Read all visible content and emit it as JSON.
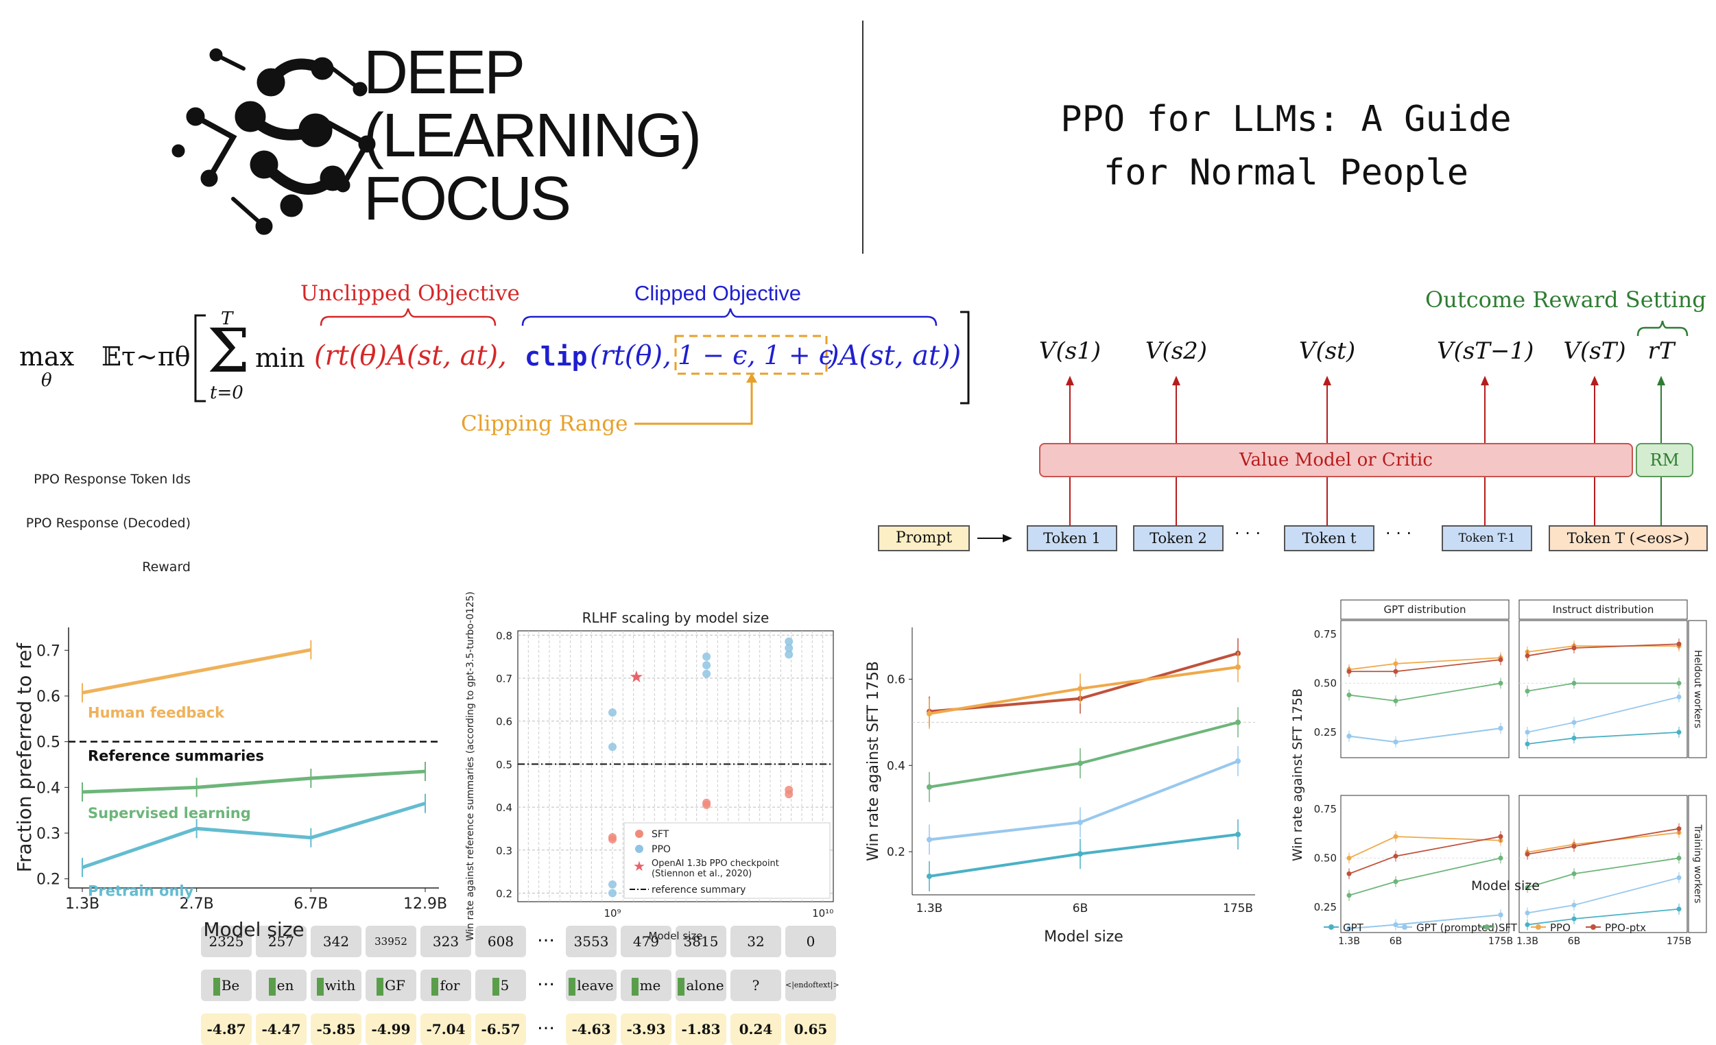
{
  "logo": {
    "line1": "DEEP",
    "line2": "(LEARNING)",
    "line3": "FOCUS"
  },
  "title": {
    "line1": "PPO for LLMs: A Guide",
    "line2": "for Normal People"
  },
  "equation": {
    "unclipped_label": "Unclipped Objective",
    "clipped_label": "Clipped Objective",
    "clipping_range_label": "Clipping Range",
    "max": "max",
    "theta": "θ",
    "expectation": "𝔼τ∼πθ",
    "sum_top": "T",
    "sum_bottom": "t=0",
    "min": "min",
    "unclipped_term": "(rt(θ)A(st, at),",
    "clip_fn": "clip",
    "clip_arg": "(rt(θ),",
    "clip_range": "1 − ϵ, 1 + ϵ",
    "clip_tail": ")A(st, at))",
    "colors": {
      "unclipped": "#d62728",
      "clipped": "#1f1fd0",
      "range": "#e8a02a",
      "outcome": "#2e7d32"
    }
  },
  "tokens": {
    "row_labels": [
      "PPO Response Token Ids",
      "PPO Response (Decoded)",
      "Reward"
    ],
    "ids": [
      "2325",
      "257",
      "342",
      "33952",
      "323",
      "608",
      "…",
      "3553",
      "479",
      "3815",
      "32",
      "0"
    ],
    "decoded": [
      "Be",
      "en",
      "with",
      "GF",
      "for",
      "5",
      "…",
      "leave",
      "me",
      "alone",
      "?",
      "<|endoftext|>"
    ],
    "rewards": [
      "-4.87",
      "-4.47",
      "-5.85",
      "-4.99",
      "-7.04",
      "-6.57",
      "…",
      "-4.63",
      "-3.93",
      "-1.83",
      "0.24",
      "0.65"
    ]
  },
  "value_diagram": {
    "outcome_label": "Outcome Reward Setting",
    "values": [
      "V(s1)",
      "V(s2)",
      "V(st)",
      "V(sT−1)",
      "V(sT)",
      "rT"
    ],
    "critic_label": "Value Model or Critic",
    "rm_label": "RM",
    "prompt_label": "Prompt",
    "token_labels": [
      "Token 1",
      "Token 2",
      "Token t",
      "Token T-1",
      "Token T (<eos>)"
    ],
    "ellipsis": "· · ·"
  },
  "chart_data": [
    {
      "type": "line",
      "categories": [
        "1.3B",
        "2.7B",
        "6.7B",
        "12.9B"
      ],
      "xlabel": "Model size",
      "ylabel": "Fraction preferred to ref",
      "ylim": [
        0.18,
        0.75
      ],
      "yticks": [
        "0.2",
        "0.3",
        "0.4",
        "0.5",
        "0.6",
        "0.7"
      ],
      "reference_line": {
        "y": 0.5,
        "label": "Reference summaries"
      },
      "series": [
        {
          "name": "Human feedback",
          "color": "#efb25a",
          "values": [
            0.607,
            null,
            0.701,
            null
          ]
        },
        {
          "name": "Supervised learning",
          "color": "#6db57a",
          "values": [
            0.39,
            0.4,
            0.42,
            0.435
          ]
        },
        {
          "name": "Pretrain only",
          "color": "#63bcd0",
          "values": [
            0.225,
            0.31,
            0.29,
            0.365
          ]
        }
      ]
    },
    {
      "type": "scatter",
      "title": "RLHF scaling by model size",
      "xlabel": "Model size",
      "ylabel": "Win rate against reference summaries (according to gpt-3.5-turbo-0125)",
      "xticks": [
        "10⁹",
        "10¹⁰"
      ],
      "yticks": [
        "0.2",
        "0.3",
        "0.4",
        "0.5",
        "0.6",
        "0.7",
        "0.8"
      ],
      "ylim": [
        0.18,
        0.81
      ],
      "reference_line": {
        "y": 0.5
      },
      "legend": [
        "SFT",
        "PPO",
        "OpenAI 1.3b PPO checkpoint (Stiennon et al., 2020)",
        "reference summary"
      ],
      "legend_lines": [
        "OpenAI 1.3b PPO checkpoint",
        "(Stiennon et al., 2020)"
      ],
      "legend_position": "lower-right",
      "series": [
        {
          "name": "SFT",
          "color": "#f08b7b",
          "points": [
            [
              1000000000.0,
              0.33
            ],
            [
              1000000000.0,
              0.325
            ],
            [
              2800000000.0,
              0.41
            ],
            [
              2800000000.0,
              0.405
            ],
            [
              6900000000.0,
              0.43
            ],
            [
              6900000000.0,
              0.44
            ]
          ]
        },
        {
          "name": "PPO",
          "color": "#8fc4e3",
          "points": [
            [
              1000000000.0,
              0.62
            ],
            [
              1000000000.0,
              0.54
            ],
            [
              1000000000.0,
              0.22
            ],
            [
              1000000000.0,
              0.2
            ],
            [
              2800000000.0,
              0.75
            ],
            [
              2800000000.0,
              0.73
            ],
            [
              2800000000.0,
              0.71
            ],
            [
              6900000000.0,
              0.785
            ],
            [
              6900000000.0,
              0.77
            ],
            [
              6900000000.0,
              0.755
            ]
          ]
        },
        {
          "name": "OpenAI 1.3b PPO checkpoint",
          "color": "#e8626b",
          "points": [
            [
              1300000000.0,
              0.703
            ]
          ]
        }
      ]
    },
    {
      "type": "line",
      "categories": [
        "1.3B",
        "6B",
        "175B"
      ],
      "xlabel": "Model size",
      "ylabel": "Win rate against SFT 175B",
      "yticks": [
        "0.2",
        "0.4",
        "0.6"
      ],
      "ylim": [
        0.1,
        0.72
      ],
      "series": [
        {
          "name": "PPO-ptx",
          "color": "#c0513a",
          "values": [
            0.525,
            0.555,
            0.66
          ]
        },
        {
          "name": "PPO",
          "color": "#efa94a",
          "values": [
            0.52,
            0.578,
            0.628
          ]
        },
        {
          "name": "SFT",
          "color": "#6db57a",
          "values": [
            0.35,
            0.405,
            0.5
          ]
        },
        {
          "name": "GPT (prompted)",
          "color": "#98c8ee",
          "values": [
            0.228,
            0.268,
            0.41
          ]
        },
        {
          "name": "GPT",
          "color": "#4ab1c5",
          "values": [
            0.143,
            0.195,
            0.24
          ]
        }
      ]
    },
    {
      "type": "line",
      "categories": [
        "1.3B",
        "6B",
        "175B"
      ],
      "ylabel": "Win rate against SFT 175B",
      "xlabel": "Model size",
      "column_titles": [
        "GPT distribution",
        "Instruct distribution"
      ],
      "row_titles": [
        "Heldout workers",
        "Training workers"
      ],
      "yticks": [
        "0.25",
        "0.50",
        "0.75"
      ],
      "ylim": [
        0.12,
        0.82
      ],
      "legend": [
        "GPT",
        "GPT (prompted)",
        "SFT",
        "PPO",
        "PPO-ptx"
      ],
      "panels": [
        {
          "series": [
            {
              "name": "GPT",
              "values": [
                0.23,
                0.2,
                0.27
              ]
            },
            {
              "name": "GPT (prompted)",
              "values": [
                0.23,
                0.2,
                0.27
              ]
            },
            {
              "name": "SFT",
              "values": [
                0.44,
                0.41,
                0.5
              ]
            },
            {
              "name": "PPO",
              "values": [
                0.57,
                0.6,
                0.63
              ]
            },
            {
              "name": "PPO-ptx",
              "values": [
                0.56,
                0.56,
                0.62
              ]
            }
          ]
        },
        {
          "series": [
            {
              "name": "GPT",
              "values": [
                0.19,
                0.22,
                0.25
              ]
            },
            {
              "name": "GPT (prompted)",
              "values": [
                0.25,
                0.3,
                0.43
              ]
            },
            {
              "name": "SFT",
              "values": [
                0.46,
                0.5,
                0.5
              ]
            },
            {
              "name": "PPO",
              "values": [
                0.66,
                0.69,
                0.69
              ]
            },
            {
              "name": "PPO-ptx",
              "values": [
                0.64,
                0.68,
                0.7
              ]
            }
          ]
        },
        {
          "series": [
            {
              "name": "GPT",
              "values": [
                0.14,
                0.16,
                0.21
              ]
            },
            {
              "name": "GPT (prompted)",
              "values": [
                0.14,
                0.16,
                0.21
              ]
            },
            {
              "name": "SFT",
              "values": [
                0.31,
                0.38,
                0.5
              ]
            },
            {
              "name": "PPO",
              "values": [
                0.5,
                0.61,
                0.59
              ]
            },
            {
              "name": "PPO-ptx",
              "values": [
                0.42,
                0.51,
                0.61
              ]
            }
          ]
        },
        {
          "series": [
            {
              "name": "GPT",
              "values": [
                0.16,
                0.19,
                0.24
              ]
            },
            {
              "name": "GPT (prompted)",
              "values": [
                0.22,
                0.26,
                0.4
              ]
            },
            {
              "name": "SFT",
              "values": [
                0.35,
                0.42,
                0.5
              ]
            },
            {
              "name": "PPO",
              "values": [
                0.53,
                0.57,
                0.63
              ]
            },
            {
              "name": "PPO-ptx",
              "values": [
                0.52,
                0.56,
                0.65
              ]
            }
          ]
        }
      ]
    }
  ],
  "colors": {
    "gpt": "#4ab1c5",
    "gpt_prompted": "#98c8ee",
    "sft": "#6db57a",
    "ppo": "#efa94a",
    "ppo_ptx": "#c0513a"
  }
}
